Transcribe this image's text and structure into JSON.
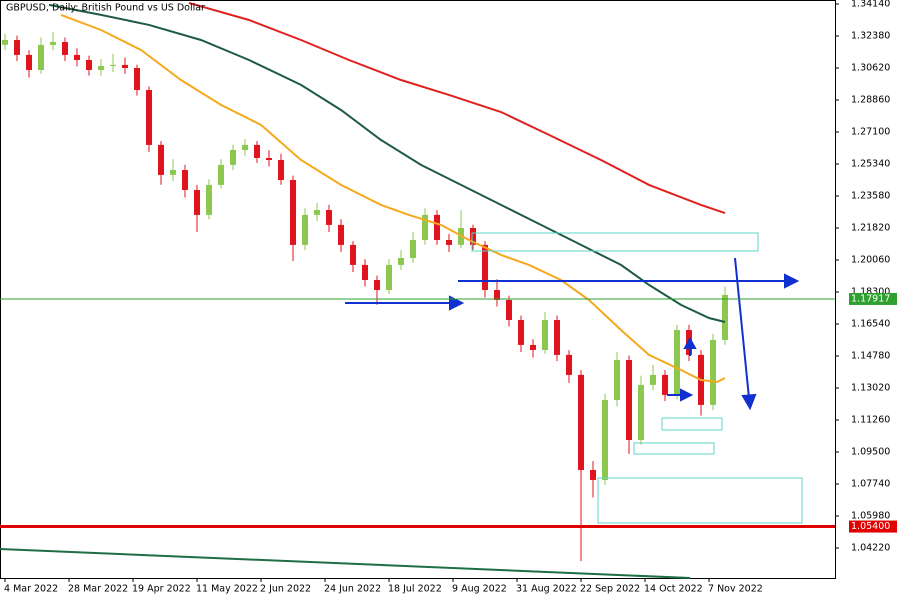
{
  "chart_data": {
    "type": "candlestick",
    "title": "GBPUSD, Daily:  British Pound vs US Dollar",
    "up_color": "#8cc850",
    "down_color": "#e0141e",
    "x": [
      0,
      3,
      6,
      9,
      12,
      15,
      18,
      21,
      24,
      27,
      30,
      33,
      36,
      39,
      42,
      45,
      48,
      51,
      54,
      57,
      60,
      63,
      66,
      69,
      72,
      75,
      78,
      81,
      84,
      87,
      90,
      93,
      96,
      99,
      102,
      105,
      108,
      111,
      114,
      117,
      120,
      123,
      126,
      129,
      132,
      135,
      138,
      141,
      144,
      147,
      150,
      153,
      156,
      159,
      162,
      165,
      168,
      171,
      174,
      177,
      180
    ],
    "open": [
      1.319,
      1.3216,
      1.3134,
      1.3051,
      1.3189,
      1.3205,
      1.3134,
      1.3106,
      1.3051,
      1.3073,
      1.3079,
      1.3062,
      1.2941,
      1.2639,
      1.2474,
      1.2501,
      1.2391,
      1.2254,
      1.2419,
      1.2529,
      1.2611,
      1.2639,
      1.2567,
      1.2556,
      1.2446,
      1.2089,
      1.2254,
      1.2281,
      1.2199,
      1.2089,
      1.1979,
      1.1896,
      1.1841,
      1.1979,
      1.2017,
      1.2116,
      1.2254,
      1.2116,
      1.2089,
      1.2182,
      1.2089,
      1.1841,
      1.1786,
      1.1676,
      1.1539,
      1.1511,
      1.1676,
      1.1484,
      1.1374,
      1.0851,
      1.0796,
      1.1236,
      1.1456,
      1.1016,
      1.1319,
      1.1374,
      1.1264,
      1.1621,
      1.1484,
      1.1209,
      1.1566
    ],
    "high": [
      1.325,
      1.324,
      1.316,
      1.323,
      1.326,
      1.323,
      1.317,
      1.313,
      1.311,
      1.314,
      1.312,
      1.308,
      1.296,
      1.266,
      1.256,
      1.253,
      1.242,
      1.245,
      1.256,
      1.264,
      1.267,
      1.266,
      1.261,
      1.259,
      1.247,
      1.229,
      1.232,
      1.231,
      1.223,
      1.211,
      1.201,
      1.192,
      1.201,
      1.206,
      1.216,
      1.229,
      1.228,
      1.215,
      1.228,
      1.22,
      1.211,
      1.19,
      1.181,
      1.17,
      1.157,
      1.172,
      1.17,
      1.151,
      1.14,
      1.09,
      1.127,
      1.15,
      1.148,
      1.137,
      1.143,
      1.14,
      1.165,
      1.165,
      1.151,
      1.16,
      1.186
    ],
    "low": [
      1.316,
      1.31,
      1.301,
      1.303,
      1.316,
      1.31,
      1.307,
      1.302,
      1.302,
      1.304,
      1.303,
      1.291,
      1.26,
      1.242,
      1.244,
      1.235,
      1.216,
      1.223,
      1.24,
      1.25,
      1.258,
      1.254,
      1.252,
      1.242,
      1.2,
      1.206,
      1.222,
      1.216,
      1.205,
      1.194,
      1.186,
      1.176,
      1.182,
      1.195,
      1.199,
      1.209,
      1.209,
      1.205,
      1.207,
      1.206,
      1.18,
      1.175,
      1.164,
      1.15,
      1.147,
      1.149,
      1.145,
      1.133,
      1.035,
      1.07,
      1.077,
      1.12,
      1.094,
      1.099,
      1.129,
      1.123,
      1.124,
      1.145,
      1.115,
      1.118,
      1.154
    ],
    "close": [
      1.3216,
      1.3134,
      1.3051,
      1.3189,
      1.3205,
      1.3134,
      1.3106,
      1.3051,
      1.3073,
      1.3079,
      1.3062,
      1.2941,
      1.2639,
      1.2474,
      1.2501,
      1.2391,
      1.2254,
      1.2419,
      1.2529,
      1.2611,
      1.2639,
      1.2567,
      1.2556,
      1.2446,
      1.2089,
      1.2254,
      1.2281,
      1.2199,
      1.2089,
      1.1979,
      1.1896,
      1.1841,
      1.1979,
      1.2017,
      1.2116,
      1.2254,
      1.2116,
      1.2089,
      1.2182,
      1.2089,
      1.1841,
      1.1786,
      1.1676,
      1.1539,
      1.1511,
      1.1676,
      1.1484,
      1.1374,
      1.0851,
      1.0796,
      1.1236,
      1.1456,
      1.1016,
      1.1319,
      1.1374,
      1.1264,
      1.1621,
      1.1484,
      1.1209,
      1.1566,
      1.1814
    ],
    "lines": [
      {
        "color": "#f5a81c",
        "x": [
          14,
          24,
          34,
          44,
          54,
          64,
          74,
          84,
          94,
          101,
          109,
          116,
          124,
          131,
          139,
          146,
          154,
          161,
          169,
          174,
          178,
          180
        ],
        "values": [
          1.3354,
          1.3271,
          1.3161,
          1.2996,
          1.2859,
          1.2749,
          1.2556,
          1.2419,
          1.2309,
          1.2254,
          1.2199,
          1.2116,
          1.2034,
          1.1979,
          1.1896,
          1.1786,
          1.1621,
          1.1484,
          1.1401,
          1.1346,
          1.1335,
          1.1357
        ]
      },
      {
        "color": "#1e5a46",
        "x": [
          11,
          24,
          36,
          49,
          61,
          74,
          84,
          94,
          104,
          114,
          124,
          134,
          144,
          154,
          161,
          169,
          176,
          180
        ],
        "values": [
          1.3409,
          1.3354,
          1.3299,
          1.3216,
          1.3106,
          1.2969,
          1.2831,
          1.2666,
          1.2529,
          1.2419,
          1.2309,
          1.2199,
          1.2089,
          1.1979,
          1.1869,
          1.1759,
          1.1687,
          1.1665
        ]
      },
      {
        "color": "#e0201e",
        "x": [
          46,
          61,
          74,
          86,
          99,
          111,
          124,
          136,
          149,
          161,
          174,
          180
        ],
        "values": [
          1.342,
          1.3326,
          1.3216,
          1.3106,
          1.2996,
          1.2914,
          1.282,
          1.2694,
          1.2556,
          1.2419,
          1.2309,
          1.2264
        ]
      }
    ],
    "hlines": [
      {
        "value": 1.17917,
        "label": "1.17917",
        "color": "#2ea02e"
      },
      {
        "value": 1.054,
        "label": "1.05400",
        "color": "#e00000"
      }
    ],
    "xlim": [
      -1.25,
      207.5
    ],
    "xticks": [
      {
        "value": 0,
        "label": "4 Mar 2022"
      },
      {
        "value": 16,
        "label": "28 Mar 2022"
      },
      {
        "value": 32,
        "label": "19 Apr 2022"
      },
      {
        "value": 48,
        "label": "11 May 2022"
      },
      {
        "value": 64,
        "label": "2 Jun 2022"
      },
      {
        "value": 80,
        "label": "24 Jun 2022"
      },
      {
        "value": 96,
        "label": "18 Jul 2022"
      },
      {
        "value": 112,
        "label": "9 Aug 2022"
      },
      {
        "value": 128,
        "label": "31 Aug 2022"
      },
      {
        "value": 144,
        "label": "22 Sep 2022"
      },
      {
        "value": 160,
        "label": "14 Oct 2022"
      },
      {
        "value": 176,
        "label": "7 Nov 2022"
      }
    ],
    "ylim": [
      1.0257,
      1.3436
    ],
    "yticks": [
      {
        "value": 1.3414,
        "label": "1.34140"
      },
      {
        "value": 1.3238,
        "label": "1.32380"
      },
      {
        "value": 1.3062,
        "label": "1.30620"
      },
      {
        "value": 1.2886,
        "label": "1.28860"
      },
      {
        "value": 1.271,
        "label": "1.27100"
      },
      {
        "value": 1.2534,
        "label": "1.25340"
      },
      {
        "value": 1.2358,
        "label": "1.23580"
      },
      {
        "value": 1.2182,
        "label": "1.21820"
      },
      {
        "value": 1.2006,
        "label": "1.20060"
      },
      {
        "value": 1.183,
        "label": "1.18300"
      },
      {
        "value": 1.1654,
        "label": "1.16540"
      },
      {
        "value": 1.1478,
        "label": "1.14780"
      },
      {
        "value": 1.1302,
        "label": "1.13020"
      },
      {
        "value": 1.1126,
        "label": "1.11260"
      },
      {
        "value": 1.095,
        "label": "1.09500"
      },
      {
        "value": 1.0774,
        "label": "1.07740"
      },
      {
        "value": 1.0598,
        "label": "1.05980"
      },
      {
        "value": 1.0422,
        "label": "1.04220"
      }
    ]
  }
}
